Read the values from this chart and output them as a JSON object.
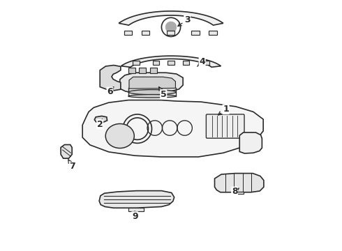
{
  "title": "",
  "background_color": "#ffffff",
  "line_color": "#2a2a2a",
  "line_width": 1.2,
  "figsize": [
    4.9,
    3.6
  ],
  "dpi": 100,
  "label_positions": {
    "1": [
      0.72,
      0.565,
      0.68,
      0.535
    ],
    "2": [
      0.215,
      0.505,
      0.225,
      0.527
    ],
    "3": [
      0.565,
      0.925,
      0.518,
      0.892
    ],
    "4": [
      0.625,
      0.755,
      0.605,
      0.737
    ],
    "5": [
      0.47,
      0.625,
      0.445,
      0.665
    ],
    "6": [
      0.255,
      0.635,
      0.272,
      0.658
    ],
    "7": [
      0.105,
      0.335,
      0.082,
      0.373
    ],
    "8": [
      0.755,
      0.235,
      0.775,
      0.25
    ],
    "9": [
      0.355,
      0.135,
      0.355,
      0.158
    ]
  }
}
